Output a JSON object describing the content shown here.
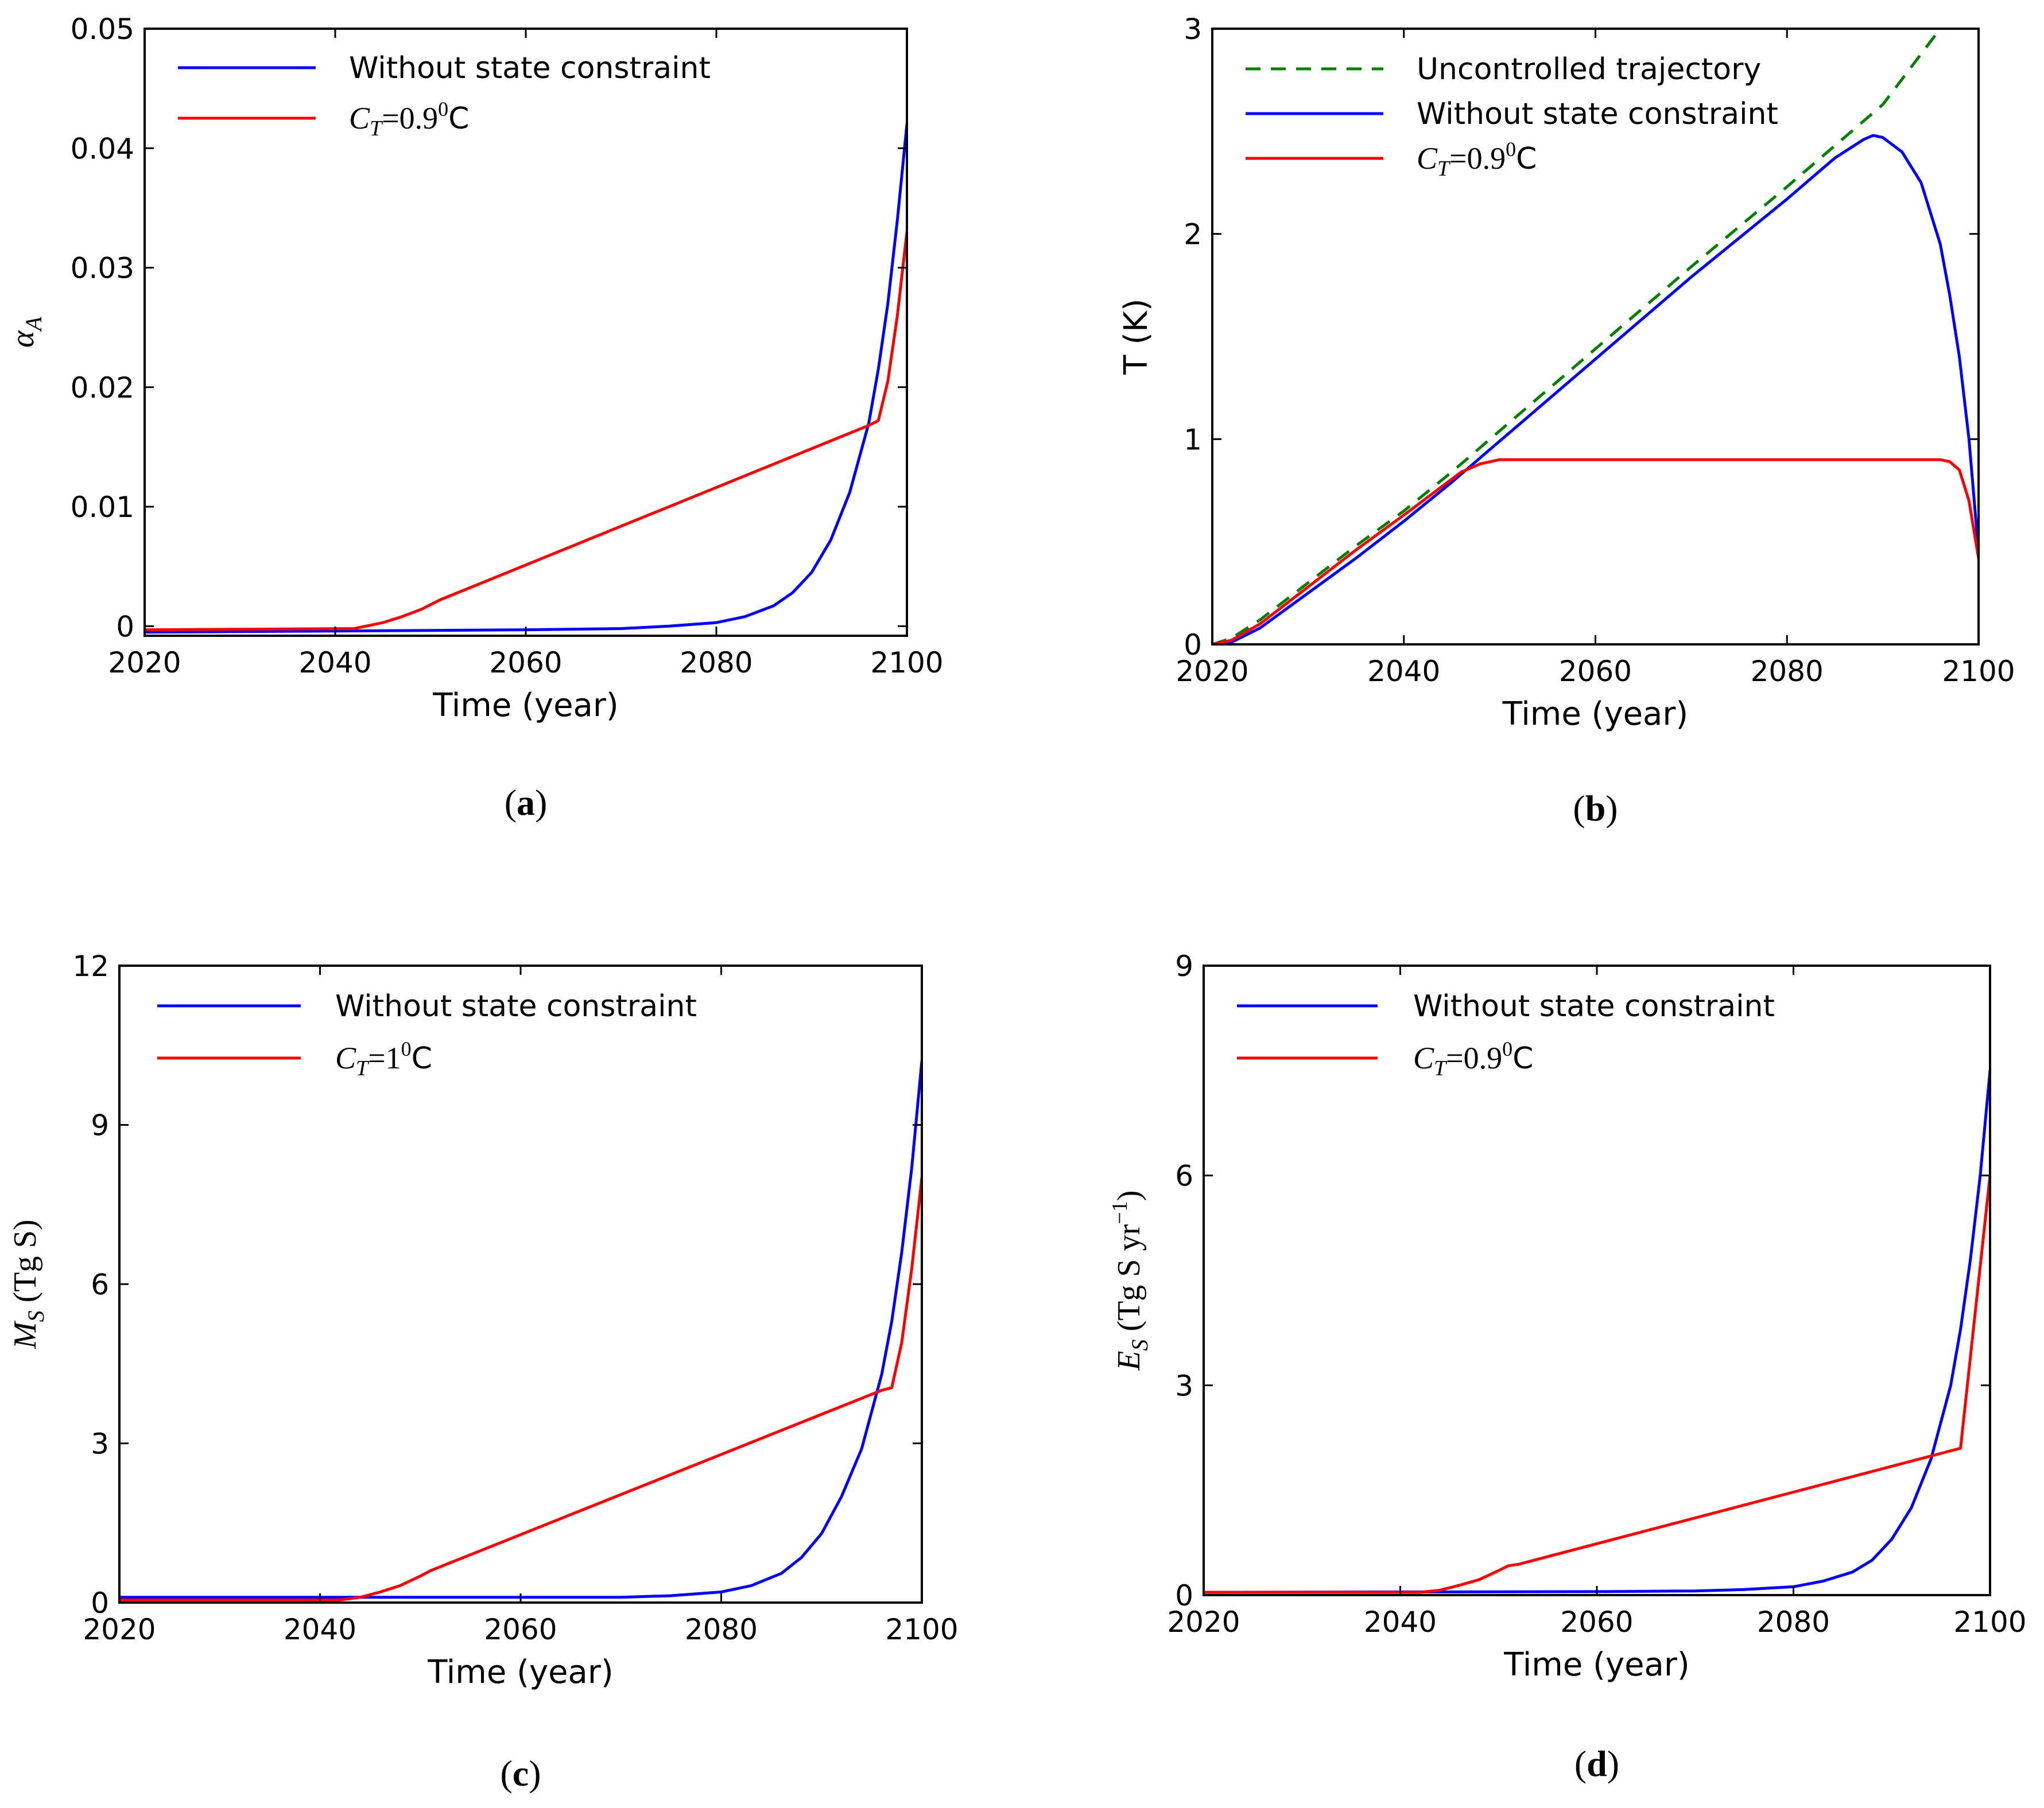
{
  "chart_data": [
    {
      "id": "a",
      "type": "line",
      "caption": "a",
      "xlabel": "Time (year)",
      "ylabel": "α",
      "ylabel_sub": "A",
      "xlim": [
        2020,
        2100
      ],
      "ylim": [
        -0.0008,
        0.05
      ],
      "xticks": [
        2020,
        2040,
        2060,
        2080,
        2100
      ],
      "xtick_labels": [
        "2020",
        "2040",
        "2060",
        "2080",
        "2100"
      ],
      "yticks": [
        0,
        0.01,
        0.02,
        0.03,
        0.04,
        0.05
      ],
      "ytick_labels": [
        "0",
        "0.01",
        "0.02",
        "0.03",
        "0.04",
        "0.05"
      ],
      "legend": [
        "Without state constraint",
        "C_T = 0.9⁰C"
      ],
      "legend_display": [
        {
          "type": "plain",
          "text": "Without state constraint"
        },
        {
          "type": "math",
          "sym": "C",
          "sub": "T",
          "eq": "=0.9",
          "sup": "0",
          "unit": "C"
        }
      ],
      "series": [
        {
          "name": "Without state constraint",
          "color": "#0000ff",
          "dashed": false,
          "x": [
            2020,
            2040,
            2060,
            2070,
            2075,
            2080,
            2083,
            2086,
            2088,
            2090,
            2092,
            2094,
            2096,
            2097,
            2098,
            2099,
            2100
          ],
          "y": [
            -0.0005,
            -0.0004,
            -0.0003,
            -0.0002,
            0.0,
            0.0003,
            0.0008,
            0.0017,
            0.0028,
            0.0045,
            0.0072,
            0.0112,
            0.017,
            0.0215,
            0.027,
            0.034,
            0.042
          ]
        },
        {
          "name": "C_T = 0.9⁰C",
          "color": "#ff0000",
          "dashed": false,
          "x": [
            2020,
            2042,
            2045,
            2047,
            2049,
            2051,
            2096,
            2097,
            2098,
            2099,
            2100
          ],
          "y": [
            -0.0003,
            -0.0002,
            0.0003,
            0.0008,
            0.0014,
            0.0022,
            0.0168,
            0.0172,
            0.0205,
            0.026,
            0.033
          ]
        }
      ]
    },
    {
      "id": "b",
      "type": "line",
      "caption": "b",
      "xlabel": "Time (year)",
      "ylabel": "T (K)",
      "xlim": [
        2020,
        2100
      ],
      "ylim": [
        0,
        3
      ],
      "xticks": [
        2020,
        2040,
        2060,
        2080,
        2100
      ],
      "xtick_labels": [
        "2020",
        "2040",
        "2060",
        "2080",
        "2100"
      ],
      "yticks": [
        0,
        1,
        2,
        3
      ],
      "ytick_labels": [
        "0",
        "1",
        "2",
        "3"
      ],
      "legend": [
        "Uncontrolled trajectory",
        "Without state constraint",
        "C_T = 0.9⁰C"
      ],
      "legend_display": [
        {
          "type": "plain",
          "text": "Uncontrolled trajectory"
        },
        {
          "type": "plain",
          "text": "Without state constraint"
        },
        {
          "type": "math",
          "sym": "C",
          "sub": "T",
          "eq": "=0.9",
          "sup": "0",
          "unit": "C"
        }
      ],
      "series": [
        {
          "name": "Uncontrolled trajectory",
          "color": "#008000",
          "dashed": true,
          "x": [
            2020,
            2022,
            2025,
            2030,
            2035,
            2040,
            2045,
            2050,
            2060,
            2070,
            2080,
            2090,
            2096
          ],
          "y": [
            0.0,
            0.03,
            0.12,
            0.3,
            0.48,
            0.65,
            0.84,
            1.04,
            1.44,
            1.84,
            2.23,
            2.63,
            3.0
          ]
        },
        {
          "name": "Without state constraint",
          "color": "#0000ff",
          "dashed": false,
          "x": [
            2020,
            2022,
            2025,
            2030,
            2035,
            2040,
            2045,
            2050,
            2060,
            2070,
            2080,
            2085,
            2088,
            2089,
            2090,
            2092,
            2094,
            2096,
            2097,
            2098,
            2099,
            2100
          ],
          "y": [
            0.0,
            0.01,
            0.08,
            0.25,
            0.42,
            0.6,
            0.79,
            0.99,
            1.39,
            1.79,
            2.17,
            2.37,
            2.46,
            2.48,
            2.47,
            2.4,
            2.25,
            1.95,
            1.7,
            1.4,
            1.0,
            0.45
          ]
        },
        {
          "name": "C_T = 0.9⁰C",
          "color": "#ff0000",
          "dashed": false,
          "x": [
            2020,
            2022,
            2025,
            2030,
            2035,
            2040,
            2044,
            2046,
            2048,
            2050,
            2060,
            2070,
            2080,
            2090,
            2096,
            2097,
            2098,
            2099,
            2100
          ],
          "y": [
            0.0,
            0.02,
            0.1,
            0.28,
            0.46,
            0.63,
            0.77,
            0.84,
            0.88,
            0.9,
            0.9,
            0.9,
            0.9,
            0.9,
            0.9,
            0.89,
            0.85,
            0.7,
            0.42
          ]
        }
      ]
    },
    {
      "id": "c",
      "type": "line",
      "caption": "c",
      "xlabel": "Time (year)",
      "ylabel": "M",
      "ylabel_sub": "S",
      "ylabel_unit": "(Tg S)",
      "xlim": [
        2020,
        2100
      ],
      "ylim": [
        0,
        12
      ],
      "xticks": [
        2020,
        2040,
        2060,
        2080,
        2100
      ],
      "xtick_labels": [
        "2020",
        "2040",
        "2060",
        "2080",
        "2100"
      ],
      "yticks": [
        0,
        3,
        6,
        9,
        12
      ],
      "ytick_labels": [
        "0",
        "3",
        "6",
        "9",
        "12"
      ],
      "legend": [
        "Without state constraint",
        "C_T = 1⁰C"
      ],
      "legend_display": [
        {
          "type": "plain",
          "text": "Without state constraint"
        },
        {
          "type": "math",
          "sym": "C",
          "sub": "T",
          "eq": "=1",
          "sup": "0",
          "unit": "C"
        }
      ],
      "series": [
        {
          "name": "Without state constraint",
          "color": "#0000ff",
          "dashed": false,
          "x": [
            2020,
            2060,
            2070,
            2075,
            2080,
            2083,
            2086,
            2088,
            2090,
            2092,
            2094,
            2096,
            2097,
            2098,
            2099,
            2100
          ],
          "y": [
            0.1,
            0.1,
            0.1,
            0.13,
            0.2,
            0.32,
            0.55,
            0.85,
            1.3,
            2.0,
            2.9,
            4.3,
            5.3,
            6.6,
            8.2,
            10.2
          ]
        },
        {
          "name": "C_T = 1⁰C",
          "color": "#ff0000",
          "dashed": false,
          "x": [
            2020,
            2042,
            2044,
            2046,
            2048,
            2050,
            2051,
            2096,
            2097,
            2098,
            2099,
            2100
          ],
          "y": [
            0.05,
            0.05,
            0.1,
            0.2,
            0.32,
            0.5,
            0.6,
            4.0,
            4.05,
            4.9,
            6.3,
            8.0
          ]
        }
      ]
    },
    {
      "id": "d",
      "type": "line",
      "caption": "d",
      "xlabel": "Time (year)",
      "ylabel": "E",
      "ylabel_sub": "S",
      "ylabel_unit_pre": "(Tg S yr",
      "ylabel_unit_sup": "−1",
      "ylabel_unit_post": ")",
      "xlim": [
        2020,
        2100
      ],
      "ylim": [
        0,
        9
      ],
      "xticks": [
        2020,
        2040,
        2060,
        2080,
        2100
      ],
      "xtick_labels": [
        "2020",
        "2040",
        "2060",
        "2080",
        "2100"
      ],
      "yticks": [
        0,
        3,
        6,
        9
      ],
      "ytick_labels": [
        "0",
        "3",
        "6",
        "9"
      ],
      "legend": [
        "Without state constraint",
        "C_T = 0.9⁰C"
      ],
      "legend_display": [
        {
          "type": "plain",
          "text": "Without state constraint"
        },
        {
          "type": "math",
          "sym": "C",
          "sub": "T",
          "eq": "=0.9",
          "sup": "0",
          "unit": "C"
        }
      ],
      "series": [
        {
          "name": "Without state constraint",
          "color": "#0000ff",
          "dashed": false,
          "x": [
            2020,
            2060,
            2070,
            2075,
            2080,
            2083,
            2086,
            2088,
            2090,
            2092,
            2094,
            2096,
            2097,
            2098,
            2099,
            2100
          ],
          "y": [
            0.04,
            0.05,
            0.06,
            0.08,
            0.12,
            0.2,
            0.33,
            0.5,
            0.8,
            1.25,
            1.95,
            3.0,
            3.8,
            4.8,
            6.0,
            7.5
          ]
        },
        {
          "name": "C_T = 0.9⁰C",
          "color": "#ff0000",
          "dashed": false,
          "x": [
            2020,
            2042,
            2044,
            2046,
            2048,
            2050,
            2051,
            2052,
            2097,
            2100
          ],
          "y": [
            0.04,
            0.04,
            0.07,
            0.14,
            0.22,
            0.35,
            0.42,
            0.44,
            2.1,
            6.0
          ]
        }
      ]
    }
  ]
}
